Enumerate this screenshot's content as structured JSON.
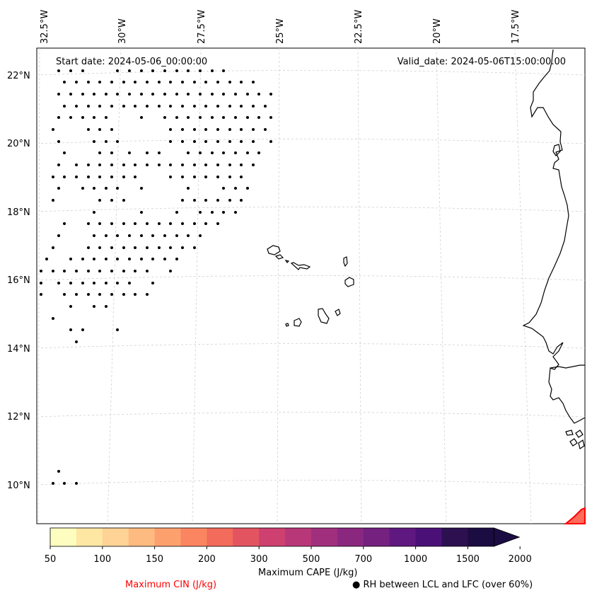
{
  "header": {
    "start_date": "Start date: 2024-05-06_00:00:00",
    "valid_date": "Valid_date: 2024-05-06T15:00:00.00"
  },
  "axes": {
    "lon_ticks": [
      "32.5°W",
      "30°W",
      "27.5°W",
      "25°W",
      "22.5°W",
      "20°W",
      "17.5°W"
    ],
    "lat_ticks": [
      "22°N",
      "20°N",
      "18°N",
      "16°N",
      "14°N",
      "12°N",
      "10°N"
    ]
  },
  "colorbar": {
    "label": "Maximum CAPE (J/kg)",
    "tick_labels": [
      "50",
      "100",
      "150",
      "200",
      "300",
      "500",
      "700",
      "1000",
      "1500",
      "2000"
    ],
    "colors": [
      "#fcfdbf",
      "#fee7a3",
      "#fed395",
      "#febb81",
      "#fca16e",
      "#fa8560",
      "#f26b5b",
      "#e35461",
      "#cd4070",
      "#b73779",
      "#a0307e",
      "#8a2880",
      "#742180",
      "#5f187f",
      "#4a1078",
      "#2c1050",
      "#1b0c41"
    ]
  },
  "legend": {
    "cin_label": "Maximum CIN (J/kg)",
    "cin_color": "#ff0000",
    "rh_label": "● RH between LCL and LFC (over 60%)"
  },
  "map": {
    "coastline_color": "#000000",
    "grid_color": "#d0d0d0",
    "marker": "black-dot"
  }
}
